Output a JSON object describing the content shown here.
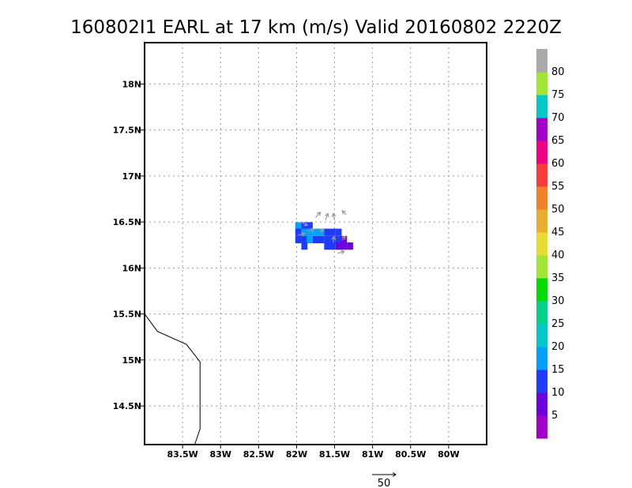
{
  "chart_data": {
    "type": "heatmap",
    "title": "160802I1 EARL at 17 km (m/s) Valid 20160802 2220Z",
    "xlim": [
      -84.0,
      -79.5
    ],
    "ylim": [
      14.08,
      18.45
    ],
    "x_ticks": [
      -83.5,
      -83.0,
      -82.5,
      -82.0,
      -81.5,
      -81.0,
      -80.5,
      -80.0
    ],
    "x_tick_labels": [
      "83.5W",
      "83W",
      "82.5W",
      "82W",
      "81.5W",
      "81W",
      "80.5W",
      "80W"
    ],
    "y_ticks": [
      14.5,
      15.0,
      15.5,
      16.0,
      16.5,
      17.0,
      17.5,
      18.0
    ],
    "y_tick_labels": [
      "14.5N",
      "15N",
      "15.5N",
      "16N",
      "16.5N",
      "17N",
      "17.5N",
      "18N"
    ],
    "grid": true,
    "coastline": [
      [
        -84.0,
        15.5
      ],
      [
        -83.83,
        15.31
      ],
      [
        -83.45,
        15.17
      ],
      [
        -83.27,
        14.98
      ],
      [
        -83.27,
        14.25
      ],
      [
        -83.34,
        14.08
      ]
    ],
    "colorbar": {
      "levels": [
        0,
        5,
        10,
        15,
        20,
        25,
        30,
        35,
        40,
        45,
        50,
        55,
        60,
        65,
        70,
        75,
        80,
        85
      ],
      "labels": [
        "5",
        "10",
        "15",
        "20",
        "25",
        "30",
        "35",
        "40",
        "45",
        "50",
        "55",
        "60",
        "65",
        "70",
        "75",
        "80"
      ],
      "colors": [
        "#a000c8",
        "#6e00dc",
        "#1e3cff",
        "#00a0ff",
        "#00c8c8",
        "#00d28c",
        "#00dc00",
        "#a0e632",
        "#e6dc32",
        "#e6af2d",
        "#f08228",
        "#fa3c3c",
        "#f00082",
        "#a000c8",
        "#00c8c8",
        "#a0e632",
        "#aaaaaa"
      ]
    },
    "cells": [
      {
        "lon": -81.98,
        "lat": 16.46,
        "v": 17
      },
      {
        "lon": -81.9,
        "lat": 16.46,
        "v": 12
      },
      {
        "lon": -81.83,
        "lat": 16.46,
        "v": 13
      },
      {
        "lon": -81.98,
        "lat": 16.39,
        "v": 13
      },
      {
        "lon": -81.9,
        "lat": 16.39,
        "v": 16
      },
      {
        "lon": -81.83,
        "lat": 16.39,
        "v": 18
      },
      {
        "lon": -81.75,
        "lat": 16.39,
        "v": 16
      },
      {
        "lon": -81.68,
        "lat": 16.39,
        "v": 17
      },
      {
        "lon": -81.6,
        "lat": 16.39,
        "v": 12
      },
      {
        "lon": -81.53,
        "lat": 16.39,
        "v": 13
      },
      {
        "lon": -81.45,
        "lat": 16.39,
        "v": 14
      },
      {
        "lon": -81.98,
        "lat": 16.31,
        "v": 12
      },
      {
        "lon": -81.9,
        "lat": 16.31,
        "v": 13
      },
      {
        "lon": -81.83,
        "lat": 16.31,
        "v": 17
      },
      {
        "lon": -81.75,
        "lat": 16.31,
        "v": 14
      },
      {
        "lon": -81.68,
        "lat": 16.31,
        "v": 12
      },
      {
        "lon": -81.6,
        "lat": 16.31,
        "v": 11
      },
      {
        "lon": -81.53,
        "lat": 16.31,
        "v": 12
      },
      {
        "lon": -81.45,
        "lat": 16.31,
        "v": 13
      },
      {
        "lon": -81.38,
        "lat": 16.31,
        "v": 8
      },
      {
        "lon": -81.9,
        "lat": 16.24,
        "v": 12
      },
      {
        "lon": -81.6,
        "lat": 16.24,
        "v": 12
      },
      {
        "lon": -81.53,
        "lat": 16.24,
        "v": 13
      },
      {
        "lon": -81.45,
        "lat": 16.24,
        "v": 8
      },
      {
        "lon": -81.38,
        "lat": 16.24,
        "v": 7
      },
      {
        "lon": -81.3,
        "lat": 16.24,
        "v": 8
      }
    ],
    "vectors": [
      {
        "lon": -81.95,
        "lat": 16.5,
        "u": 15,
        "v": -7
      },
      {
        "lon": -81.75,
        "lat": 16.55,
        "u": 10,
        "v": 11
      },
      {
        "lon": -81.62,
        "lat": 16.52,
        "u": 5,
        "v": 14
      },
      {
        "lon": -81.5,
        "lat": 16.52,
        "u": -3,
        "v": 14
      },
      {
        "lon": -81.35,
        "lat": 16.58,
        "u": -8,
        "v": 8
      },
      {
        "lon": -81.85,
        "lat": 16.4,
        "u": 13,
        "v": 4
      },
      {
        "lon": -81.7,
        "lat": 16.4,
        "u": 9,
        "v": 3
      },
      {
        "lon": -81.98,
        "lat": 16.36,
        "u": 14,
        "v": 3
      },
      {
        "lon": -81.52,
        "lat": 16.28,
        "u": 2,
        "v": 12
      },
      {
        "lon": -81.46,
        "lat": 16.16,
        "u": 14,
        "v": 4
      },
      {
        "lon": -81.4,
        "lat": 16.3,
        "u": 6,
        "v": 9
      }
    ],
    "reference_vector": {
      "label": "50",
      "magnitude": 50
    }
  }
}
